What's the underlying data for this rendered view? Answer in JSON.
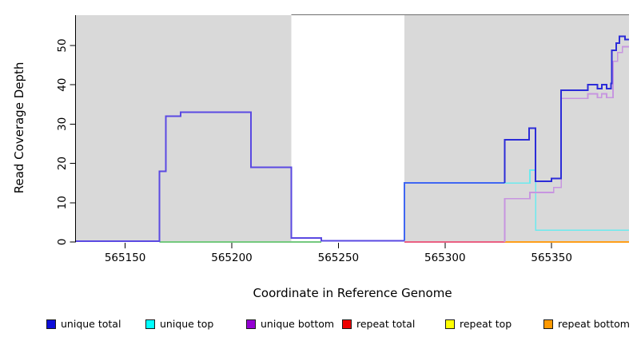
{
  "chart_data": {
    "type": "line",
    "title": "",
    "xlabel": "Coordinate in Reference Genome",
    "ylabel": "Read Coverage Depth",
    "xlim": [
      565126.9,
      565386.3
    ],
    "ylim": [
      0,
      58
    ],
    "grid": false,
    "legend_position": "bottom",
    "xticks": [
      {
        "value": 565150,
        "label": "565150"
      },
      {
        "value": 565200,
        "label": "565200"
      },
      {
        "value": 565250,
        "label": "565250"
      },
      {
        "value": 565300,
        "label": "565300"
      },
      {
        "value": 565350,
        "label": "565350"
      }
    ],
    "yticks": [
      {
        "value": 0,
        "label": "0"
      },
      {
        "value": 10,
        "label": "10"
      },
      {
        "value": 20,
        "label": "20"
      },
      {
        "value": 30,
        "label": "30"
      },
      {
        "value": 40,
        "label": "40"
      },
      {
        "value": 50,
        "label": "50"
      }
    ],
    "regions": [
      {
        "name": "covered-region-left",
        "x0": 565126.9,
        "x1": 565228,
        "fill": "#d9d9d9",
        "top_border": null
      },
      {
        "name": "uncovered-gap",
        "x0": 565228,
        "x1": 565281,
        "fill": "#ffffff",
        "top_border": "#6e6e6e"
      },
      {
        "name": "covered-region-right",
        "x0": 565281,
        "x1": 565386.3,
        "fill": "#d9d9d9",
        "top_border": "#6e6e6e"
      }
    ],
    "series": [
      {
        "name": "green-baseline",
        "color": "#74c97e",
        "width": 1.6,
        "points": [
          [
            565166,
            0
          ],
          [
            565242,
            0
          ]
        ]
      },
      {
        "name": "repeat-total-baseline",
        "color": "#ea5f82",
        "width": 1.6,
        "points": [
          [
            565281,
            0
          ],
          [
            565328,
            0
          ]
        ]
      },
      {
        "name": "repeat-bottom-baseline",
        "color": "#ff9f1a",
        "width": 2,
        "points": [
          [
            565328,
            0
          ],
          [
            565386.3,
            0
          ]
        ]
      },
      {
        "name": "unique-top",
        "color": "#6ceaee",
        "width": 1.6,
        "points": [
          [
            565328,
            15
          ],
          [
            565339.8,
            15
          ],
          [
            565339.8,
            18.3
          ],
          [
            565342.5,
            18.3
          ],
          [
            565342.5,
            3
          ],
          [
            565386.3,
            3
          ]
        ]
      },
      {
        "name": "unique-bottom",
        "color": "#c795e0",
        "width": 1.6,
        "points": [
          [
            565328,
            0
          ],
          [
            565328,
            11
          ],
          [
            565339.8,
            11
          ],
          [
            565339.8,
            12.6
          ],
          [
            565351,
            12.6
          ],
          [
            565351,
            13.9
          ],
          [
            565354.5,
            13.9
          ],
          [
            565354.5,
            36.5
          ],
          [
            565367,
            36.5
          ],
          [
            565367,
            37.7
          ],
          [
            565371.5,
            37.7
          ],
          [
            565371.5,
            36.7
          ],
          [
            565373.5,
            36.7
          ],
          [
            565373.5,
            37.7
          ],
          [
            565375.8,
            37.7
          ],
          [
            565375.8,
            36.7
          ],
          [
            565378.8,
            36.7
          ],
          [
            565378.8,
            46
          ],
          [
            565381,
            46
          ],
          [
            565381,
            48.2
          ],
          [
            565383.2,
            48.2
          ],
          [
            565383.2,
            49.7
          ],
          [
            565386.3,
            49.7
          ]
        ]
      },
      {
        "name": "unique-total-left",
        "color": "#5a49e2",
        "width": 2,
        "points": [
          [
            565126.9,
            0.2
          ],
          [
            565166,
            0.2
          ],
          [
            565166,
            18
          ],
          [
            565169,
            18
          ],
          [
            565169,
            32
          ],
          [
            565176,
            32
          ],
          [
            565176,
            33
          ],
          [
            565209,
            33
          ],
          [
            565209,
            19
          ],
          [
            565228,
            19
          ],
          [
            565228,
            1
          ],
          [
            565242,
            1
          ],
          [
            565242,
            0.3
          ],
          [
            565281,
            0.3
          ]
        ]
      },
      {
        "name": "unique-total-mid",
        "color": "#3f66f2",
        "width": 2,
        "points": [
          [
            565281,
            0.3
          ],
          [
            565281,
            15
          ],
          [
            565328,
            15
          ]
        ]
      },
      {
        "name": "unique-total-right",
        "color": "#2c2cd8",
        "width": 2,
        "points": [
          [
            565328,
            15
          ],
          [
            565328,
            26
          ],
          [
            565339.5,
            26
          ],
          [
            565339.5,
            29
          ],
          [
            565342.5,
            29
          ],
          [
            565342.5,
            15.4
          ],
          [
            565350,
            15.4
          ],
          [
            565350,
            16.2
          ],
          [
            565354.5,
            16.2
          ],
          [
            565354.5,
            38.6
          ],
          [
            565367,
            38.6
          ],
          [
            565367,
            40
          ],
          [
            565371.5,
            40
          ],
          [
            565371.5,
            39
          ],
          [
            565373.5,
            39
          ],
          [
            565373.5,
            40
          ],
          [
            565375.8,
            40
          ],
          [
            565375.8,
            39
          ],
          [
            565377.8,
            39
          ],
          [
            565377.8,
            40.3
          ],
          [
            565378.3,
            40.3
          ],
          [
            565378.3,
            48.8
          ],
          [
            565380.3,
            48.8
          ],
          [
            565380.3,
            50.6
          ],
          [
            565381.8,
            50.6
          ],
          [
            565381.8,
            52.3
          ],
          [
            565384.5,
            52.3
          ],
          [
            565384.5,
            51.5
          ],
          [
            565386.3,
            51.5
          ]
        ]
      }
    ],
    "legend": [
      {
        "label": "unique total",
        "fill": "#0d0dd8"
      },
      {
        "label": "unique top",
        "fill": "#00ffff"
      },
      {
        "label": "unique bottom",
        "fill": "#9400d3"
      },
      {
        "label": "repeat total",
        "fill": "#ee0000"
      },
      {
        "label": "repeat top",
        "fill": "#ffff00"
      },
      {
        "label": "repeat bottom",
        "fill": "#ff9900"
      }
    ]
  }
}
